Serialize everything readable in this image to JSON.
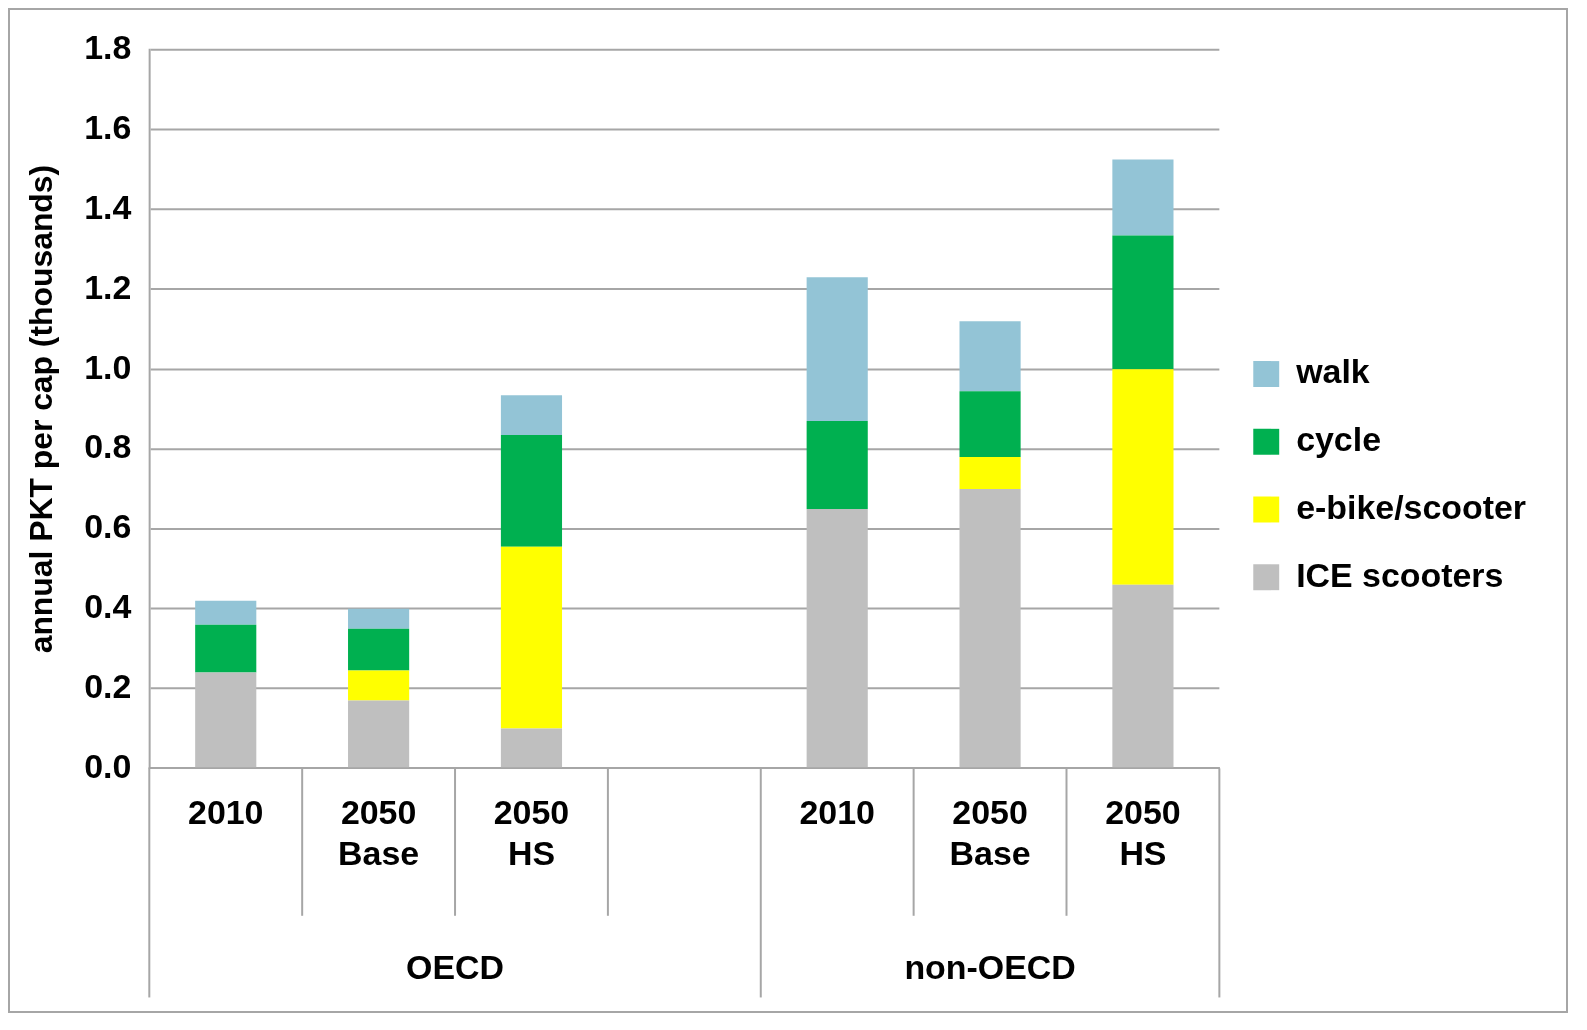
{
  "chart_data": {
    "type": "bar",
    "stacked": true,
    "ylabel": "annual PKT per cap (thousands)",
    "categories": [
      "2010",
      "2050 Base",
      "2050 HS",
      null,
      "2010",
      "2050 Base",
      "2050 HS"
    ],
    "series": [
      {
        "name": "ICE scooters",
        "color": "#bfbfbf",
        "values": [
          0.24,
          0.17,
          0.1,
          null,
          0.65,
          0.7,
          0.46
        ]
      },
      {
        "name": "e-bike/scooter",
        "color": "#ffff00",
        "values": [
          0,
          0.075,
          0.455,
          null,
          0,
          0.08,
          0.54
        ]
      },
      {
        "name": "cycle",
        "color": "#00b050",
        "values": [
          0.12,
          0.105,
          0.28,
          null,
          0.22,
          0.165,
          0.335
        ]
      },
      {
        "name": "walk",
        "color": "#93c4d6",
        "values": [
          0.06,
          0.05,
          0.1,
          null,
          0.36,
          0.175,
          0.19
        ]
      }
    ],
    "ylim": [
      0,
      1.8
    ],
    "yticks": [
      {
        "value": 0,
        "label": "0.0"
      },
      {
        "value": 0.2,
        "label": "0.2"
      },
      {
        "value": 0.4,
        "label": "0.4"
      },
      {
        "value": 0.6,
        "label": "0.6"
      },
      {
        "value": 0.8,
        "label": "0.8"
      },
      {
        "value": 1,
        "label": "1.0"
      },
      {
        "value": 1.2,
        "label": "1.2"
      },
      {
        "value": 1.4,
        "label": "1.4"
      },
      {
        "value": 1.6,
        "label": "1.6"
      },
      {
        "value": 1.8,
        "label": "1.8"
      }
    ],
    "grid": "y",
    "legend": "right",
    "annotations": [
      "OECD",
      "non-OECD"
    ]
  }
}
